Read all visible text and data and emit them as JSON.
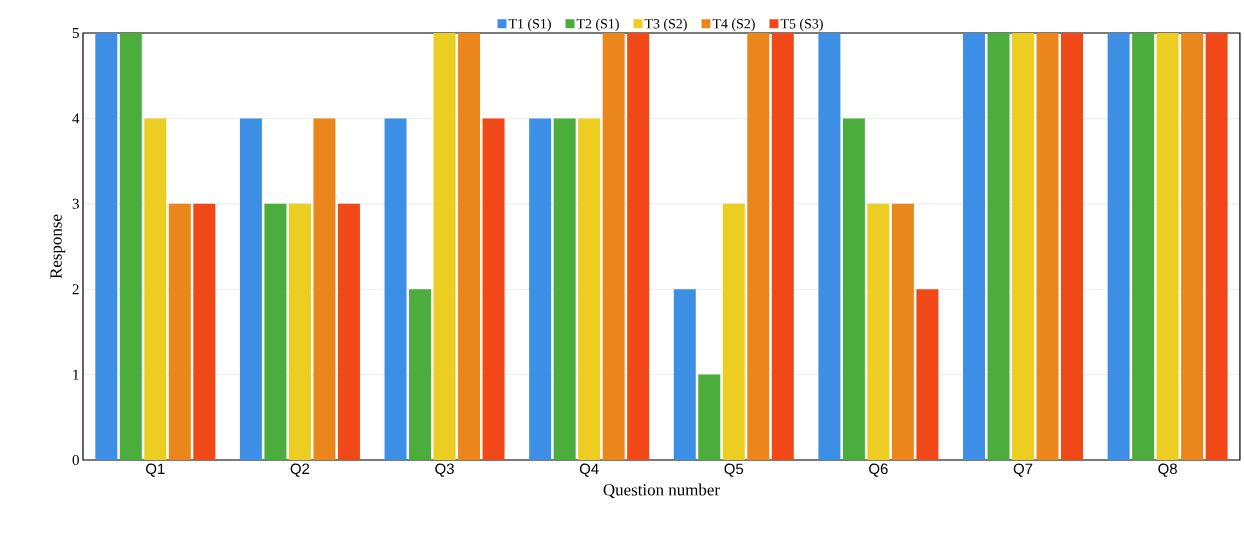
{
  "chart_data": {
    "type": "bar",
    "xlabel": "Question number",
    "ylabel": "Response",
    "categories": [
      "Q1",
      "Q2",
      "Q3",
      "Q4",
      "Q5",
      "Q6",
      "Q7",
      "Q8"
    ],
    "series": [
      {
        "name": "T1 (S1)",
        "color": "#3d8fe6",
        "values": [
          5,
          4,
          4,
          4,
          2,
          5,
          5,
          5
        ]
      },
      {
        "name": "T2 (S1)",
        "color": "#4aad3c",
        "values": [
          5,
          3,
          2,
          4,
          1,
          4,
          5,
          5
        ]
      },
      {
        "name": "T3 (S2)",
        "color": "#eccd22",
        "values": [
          4,
          3,
          5,
          4,
          3,
          3,
          5,
          5
        ]
      },
      {
        "name": "T4 (S2)",
        "color": "#ea861c",
        "values": [
          3,
          4,
          5,
          5,
          5,
          3,
          5,
          5
        ]
      },
      {
        "name": "T5 (S3)",
        "color": "#f04816",
        "values": [
          3,
          3,
          4,
          5,
          5,
          2,
          5,
          5
        ]
      }
    ],
    "ylim": [
      0,
      5
    ],
    "yticks": [
      0,
      1,
      2,
      3,
      4,
      5
    ],
    "grid": "y",
    "legend": "top"
  }
}
